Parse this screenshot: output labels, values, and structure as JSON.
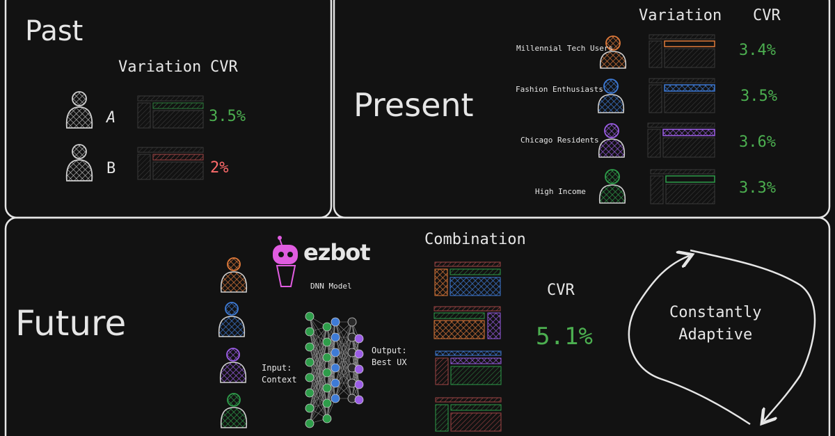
{
  "past": {
    "title": "Past",
    "col_variation": "Variation",
    "col_cvr": "CVR",
    "rows": [
      {
        "label": "A",
        "cvr": "3.5%",
        "cvr_color": "#4caf50"
      },
      {
        "label": "B",
        "cvr": "2%",
        "cvr_color": "#ff6b6b"
      }
    ]
  },
  "present": {
    "title": "Present",
    "col_variation": "Variation",
    "col_cvr": "CVR",
    "rows": [
      {
        "segment": "Millennial Tech Users",
        "cvr": "3.4%",
        "color": "#e07a3a"
      },
      {
        "segment": "Fashion Enthusiasts",
        "cvr": "3.5%",
        "color": "#3e7bd6"
      },
      {
        "segment": "Chicago Residents",
        "cvr": "3.6%",
        "color": "#9b5de5"
      },
      {
        "segment": "High Income",
        "cvr": "3.3%",
        "color": "#2e9d4a"
      }
    ]
  },
  "future": {
    "title": "Future",
    "brand": "ezbot",
    "model_label": "DNN Model",
    "input_label": "Input:\nContext",
    "output_label": "Output:\nBest UX",
    "combination_label": "Combination",
    "cvr_label": "CVR",
    "cvr_value": "5.1%",
    "adaptive_label": "Constantly\nAdaptive",
    "person_colors": [
      "#e07a3a",
      "#3e7bd6",
      "#9b5de5",
      "#2e9d4a"
    ]
  },
  "colors": {
    "green": "#4caf50",
    "red": "#ff6b6b",
    "panel_border": "#e6e6e6",
    "brand_pink": "#e05ce0"
  }
}
